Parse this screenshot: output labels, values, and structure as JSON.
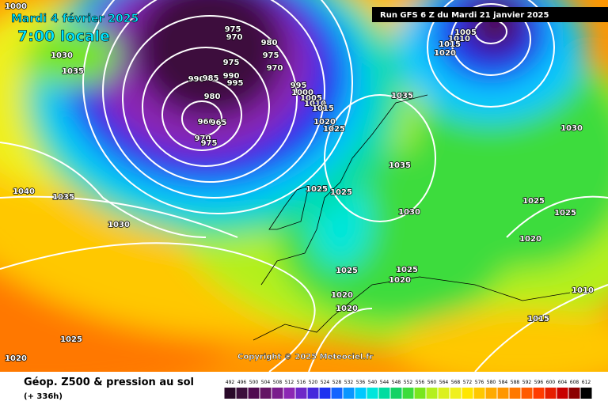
{
  "header": {
    "date": "Mardi 4 février 2025",
    "time": "7:00 locale",
    "run": "Run GFS 6 Z du Mardi 21 janvier 2025"
  },
  "copyright": "Copyright © 2025 Meteociel.fr",
  "footer": {
    "title": "Géop. Z500 & pression au sol",
    "lead": "(+ 336h)"
  },
  "isobar_labels": [
    "1000",
    "1030",
    "1035",
    "975",
    "970",
    "980",
    "975",
    "970",
    "975",
    "990",
    "985",
    "990",
    "995",
    "980",
    "960",
    "965",
    "970",
    "975",
    "995",
    "1000",
    "1005",
    "1010",
    "1015",
    "1020",
    "1025",
    "1035",
    "1035",
    "1025",
    "1025",
    "1030",
    "1025",
    "1020",
    "1025",
    "1020",
    "1020",
    "1005",
    "1010",
    "1015",
    "1020",
    "1030",
    "1025",
    "1025",
    "1020",
    "1010",
    "1015",
    "1040",
    "1035",
    "1030",
    "1025",
    "1020"
  ],
  "legend": [
    {
      "value": 492,
      "color": "#2a0a2a"
    },
    {
      "value": 496,
      "color": "#3c0f3c"
    },
    {
      "value": 500,
      "color": "#500a50"
    },
    {
      "value": 504,
      "color": "#641464"
    },
    {
      "value": 508,
      "color": "#7a1e8c"
    },
    {
      "value": 512,
      "color": "#8c28b4"
    },
    {
      "value": 516,
      "color": "#6e28c8"
    },
    {
      "value": 520,
      "color": "#4628dc"
    },
    {
      "value": 524,
      "color": "#1e32f0"
    },
    {
      "value": 528,
      "color": "#1464ff"
    },
    {
      "value": 532,
      "color": "#0a96ff"
    },
    {
      "value": 536,
      "color": "#00c8ff"
    },
    {
      "value": 540,
      "color": "#00e6dc"
    },
    {
      "value": 544,
      "color": "#00dca0"
    },
    {
      "value": 548,
      "color": "#14d264"
    },
    {
      "value": 552,
      "color": "#3cdc3c"
    },
    {
      "value": 556,
      "color": "#78e61e"
    },
    {
      "value": 560,
      "color": "#b4f01e"
    },
    {
      "value": 564,
      "color": "#dcf01e"
    },
    {
      "value": 568,
      "color": "#f0f01e"
    },
    {
      "value": 572,
      "color": "#ffe600"
    },
    {
      "value": 576,
      "color": "#ffc800"
    },
    {
      "value": 580,
      "color": "#ffaa00"
    },
    {
      "value": 584,
      "color": "#ff9600"
    },
    {
      "value": 588,
      "color": "#ff7800"
    },
    {
      "value": 592,
      "color": "#ff5a00"
    },
    {
      "value": 596,
      "color": "#ff3c00"
    },
    {
      "value": 600,
      "color": "#e61e00"
    },
    {
      "value": 604,
      "color": "#c80000"
    },
    {
      "value": 608,
      "color": "#8c0000"
    },
    {
      "value": 612,
      "color": "#000000"
    }
  ]
}
